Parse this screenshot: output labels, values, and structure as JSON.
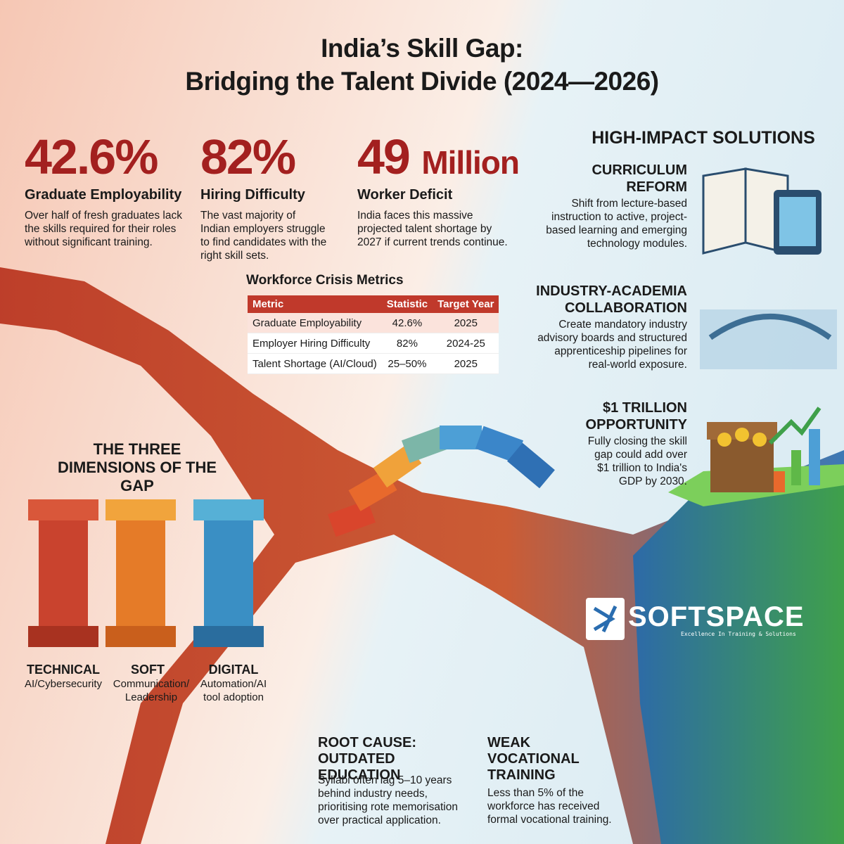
{
  "header": {
    "title_line1": "India’s Skill Gap:",
    "title_line2": "Bridging the Talent Divide (2024—2026)"
  },
  "stats": [
    {
      "value": "42.6%",
      "label": "Graduate Employability",
      "text": "Over half of fresh graduates lack the skills required for their roles without significant training."
    },
    {
      "value": "82%",
      "label": "Hiring Difficulty",
      "text": "The vast majority of Indian employers struggle to find candidates with the right skill sets."
    },
    {
      "value": "49",
      "unit": "Million",
      "label": "Worker Deficit",
      "text": "India faces this massive projected talent shortage by 2027 if current trends continue."
    }
  ],
  "table": {
    "title": "Workforce Crisis Metrics",
    "header": [
      "Metric",
      "Statistic",
      "Target Year"
    ],
    "rows": [
      [
        "Graduate Employability",
        "42.6%",
        "2025"
      ],
      [
        "Employer Hiring Difficulty",
        "82%",
        "2024-25"
      ],
      [
        "Talent Shortage (AI/Cloud)",
        "25–50%",
        "2025"
      ]
    ]
  },
  "dimensions": {
    "title": "THE THREE DIMENSIONS OF THE GAP",
    "pillars": [
      {
        "name": "TECHNICAL",
        "desc": "AI/Cybersecurity"
      },
      {
        "name": "SOFT",
        "desc": "Communication/ Leadership"
      },
      {
        "name": "DIGITAL",
        "desc": "Automation/AI tool adoption"
      }
    ]
  },
  "solutions": {
    "heading": "HIGH-IMPACT SOLUTIONS",
    "items": [
      {
        "title": "CURRICULUM REFORM",
        "text": "Shift from lecture-based instruction to active, project-based learning and emerging technology modules."
      },
      {
        "title": "INDUSTRY-ACADEMIA COLLABORATION",
        "text": "Create mandatory industry advisory boards and structured apprenticeship pipelines for real-world exposure."
      },
      {
        "title": "$1 TRILLION OPPORTUNITY",
        "text": "Fully closing the skill gap could add over $1 trillion to India's GDP by 2030."
      }
    ]
  },
  "causes": [
    {
      "title": "ROOT CAUSE: OUTDATED EDUCATION",
      "text": "Syllabi often lag 5–10 years behind industry needs, prioritising rote memorisation over practical application."
    },
    {
      "title": "WEAK VOCATIONAL TRAINING",
      "text": "Less than 5% of the workforce has received formal vocational training."
    }
  ],
  "logo": {
    "name": "SOFTSPACE",
    "tagline": "Excellence In Training & Solutions"
  }
}
